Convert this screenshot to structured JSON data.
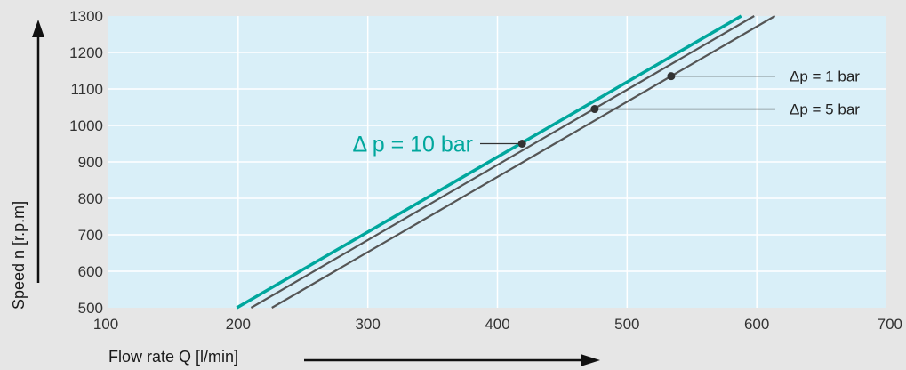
{
  "chart_data": {
    "type": "line",
    "title": "",
    "xlabel": "Flow rate Q [l/min]",
    "ylabel": "Speed n [r.p.m]",
    "xlim": [
      100,
      700
    ],
    "ylim": [
      500,
      1300
    ],
    "x_ticks": [
      "100",
      "200",
      "300",
      "400",
      "500",
      "600",
      "700"
    ],
    "y_ticks": [
      "500",
      "600",
      "700",
      "800",
      "900",
      "1000",
      "1100",
      "1200",
      "1300"
    ],
    "grid": true,
    "colors": {
      "plot_bg": "#d9eff8",
      "page_bg": "#e6e6e6",
      "highlight": "#00a79d",
      "line": "#555555"
    },
    "series": [
      {
        "name": "Δ p = 10 bar",
        "x": [
          199,
          588
        ],
        "y": [
          500,
          1300
        ],
        "color": "#00a79d"
      },
      {
        "name": "Δp = 5 bar",
        "x": [
          210,
          598
        ],
        "y": [
          500,
          1300
        ],
        "color": "#555555"
      },
      {
        "name": "Δp = 1 bar",
        "x": [
          226,
          614
        ],
        "y": [
          500,
          1300
        ],
        "color": "#555555"
      }
    ],
    "annotations": [
      {
        "text": "Δ p = 10 bar",
        "series": 0,
        "point": [
          419,
          950
        ]
      },
      {
        "text": "Δp = 5 bar",
        "series": 1,
        "point": [
          475,
          1045
        ]
      },
      {
        "text": "Δp = 1 bar",
        "series": 2,
        "point": [
          534,
          1135
        ]
      }
    ]
  }
}
